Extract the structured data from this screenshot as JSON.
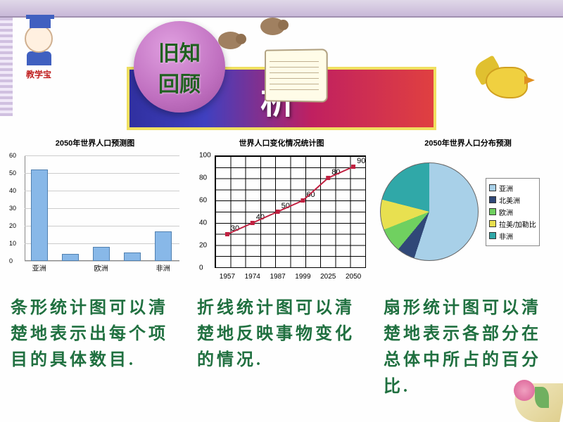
{
  "mascot_label": "教学宝",
  "badge": {
    "line1": "旧知",
    "line2": "回顾"
  },
  "banner_text": "析",
  "bar_chart": {
    "type": "bar",
    "title": "2050年世界人口预测图",
    "categories": [
      "亚洲",
      "",
      "欧洲",
      "",
      "非洲"
    ],
    "values": [
      52,
      4,
      8,
      5,
      17
    ],
    "ylim": [
      0,
      60
    ],
    "ytick_step": 10,
    "bar_color": "#88b8e8",
    "bar_border": "#5080b0",
    "grid_color": "#cccccc"
  },
  "line_chart": {
    "type": "line",
    "title": "世界人口变化情况统计图",
    "x_labels": [
      "1957",
      "1974",
      "1987",
      "1999",
      "2025",
      "2050"
    ],
    "y_values": [
      30,
      40,
      50,
      60,
      80,
      90
    ],
    "point_labels": [
      "30",
      "40",
      "50",
      "60",
      "80",
      "90"
    ],
    "ylim": [
      0,
      100
    ],
    "ytick_step": 20,
    "line_color": "#c02040",
    "line_width": 2,
    "marker": "square",
    "marker_size": 5,
    "marker_color": "#c02040"
  },
  "pie_chart": {
    "type": "pie",
    "title": "2050年世界人口分布预测",
    "slices": [
      {
        "label": "亚洲",
        "value": 55,
        "color": "#a8d0e8"
      },
      {
        "label": "北美洲",
        "value": 6,
        "color": "#304878"
      },
      {
        "label": "欧洲",
        "value": 8,
        "color": "#70d060"
      },
      {
        "label": "拉美/加勒比",
        "value": 10,
        "color": "#e8e050"
      },
      {
        "label": "非洲",
        "value": 21,
        "color": "#30a8a8"
      }
    ]
  },
  "captions": {
    "bar": "条形统计图可以清楚地表示出每个项目的具体数目.",
    "line": "折线统计图可以清楚地反映事物变化的情况.",
    "pie": "扇形统计图可以清楚地表示各部分在总体中所占的百分比."
  }
}
